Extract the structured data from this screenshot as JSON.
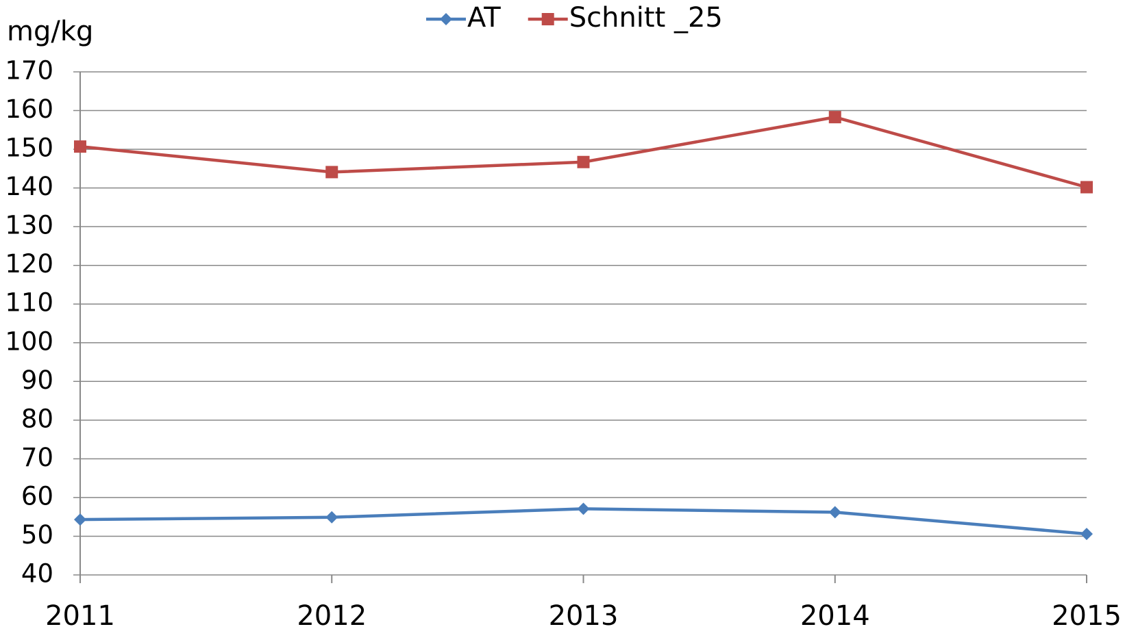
{
  "chart_data": {
    "type": "line",
    "y_label": "mg/kg",
    "categories": [
      "2011",
      "2012",
      "2013",
      "2014",
      "2015"
    ],
    "series": [
      {
        "name": "AT",
        "color": "#4a7ebb",
        "marker": "diamond",
        "values": [
          54.3,
          54.9,
          57.1,
          56.2,
          50.6
        ]
      },
      {
        "name": "Schnitt _25",
        "color": "#be4b48",
        "marker": "square",
        "values": [
          150.7,
          144.1,
          146.7,
          158.3,
          140.2
        ]
      }
    ],
    "ylim": [
      40,
      170
    ],
    "yticks": [
      40,
      50,
      60,
      70,
      80,
      90,
      100,
      110,
      120,
      130,
      140,
      150,
      160,
      170
    ],
    "grid": true,
    "legend": "top"
  }
}
